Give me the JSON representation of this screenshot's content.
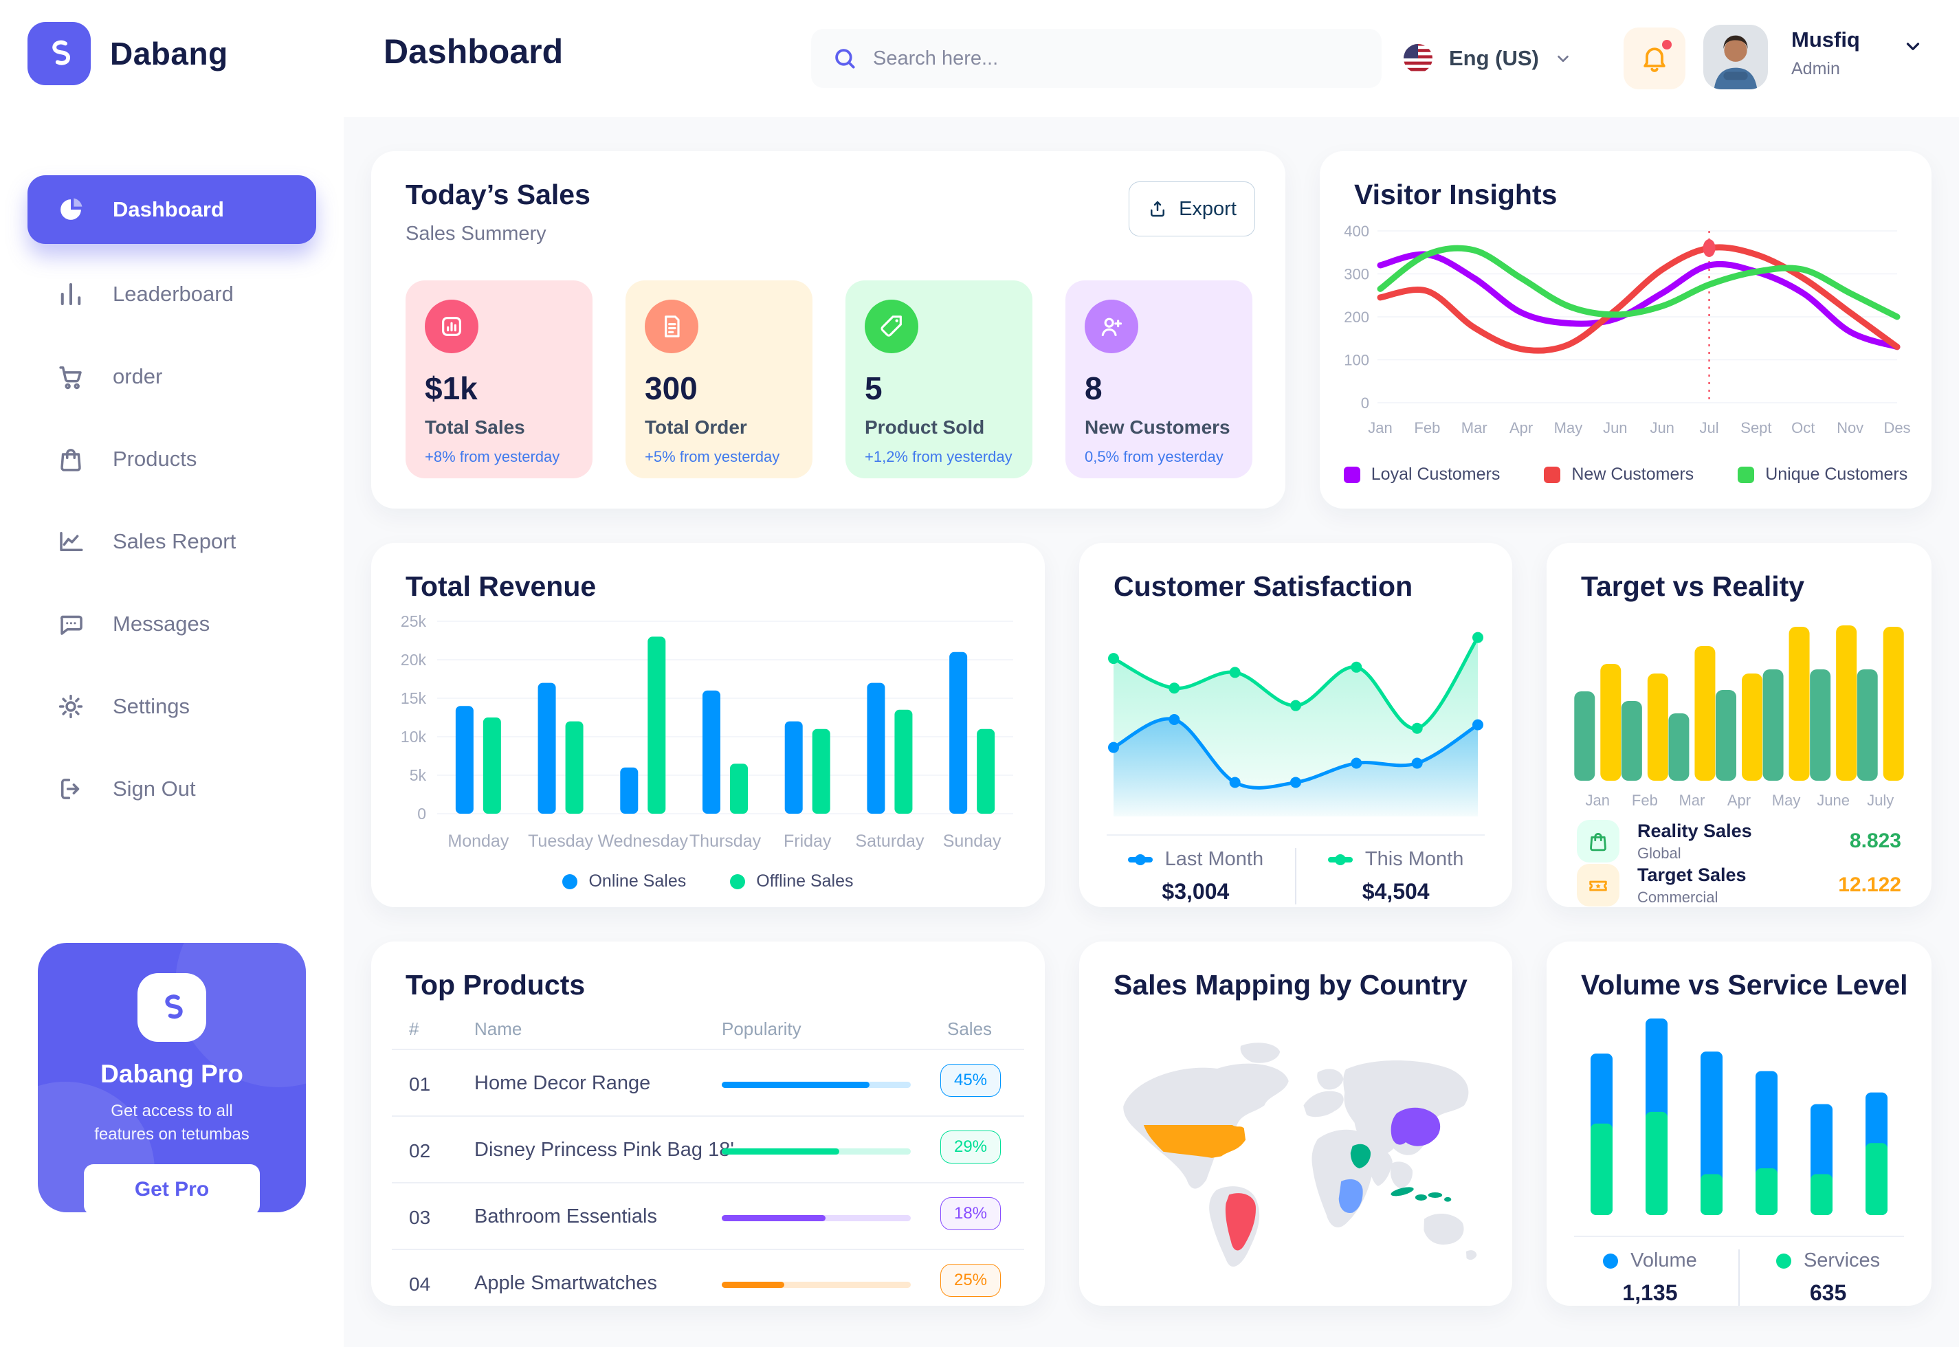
{
  "app": {
    "brand": "Dabang",
    "accent_color": "#5D5FEF"
  },
  "sidebar": {
    "items": [
      {
        "label": "Dashboard",
        "active": true
      },
      {
        "label": "Leaderboard",
        "active": false
      },
      {
        "label": "order",
        "active": false
      },
      {
        "label": "Products",
        "active": false
      },
      {
        "label": "Sales Report",
        "active": false
      },
      {
        "label": "Messages",
        "active": false
      },
      {
        "label": "Settings",
        "active": false
      },
      {
        "label": "Sign Out",
        "active": false
      }
    ],
    "pro": {
      "title": "Dabang Pro",
      "line1": "Get access to all",
      "line2": "features on tetumbas",
      "button": "Get Pro"
    }
  },
  "header": {
    "title": "Dashboard",
    "search_placeholder": "Search here...",
    "language": "Eng (US)",
    "user_name": "Musfiq",
    "user_role": "Admin"
  },
  "today": {
    "title": "Today’s Sales",
    "subtitle": "Sales Summery",
    "export_label": "Export",
    "cards": [
      {
        "value": "$1k",
        "label": "Total Sales",
        "note": "+8% from yesterday",
        "bg": "#FFE2E5",
        "icon_bg": "#FA5A7D"
      },
      {
        "value": "300",
        "label": "Total Order",
        "note": "+5% from yesterday",
        "bg": "#FFF4DE",
        "icon_bg": "#FF947A"
      },
      {
        "value": "5",
        "label": "Product Sold",
        "note": "+1,2% from yesterday",
        "bg": "#DCFCE7",
        "icon_bg": "#3CD856"
      },
      {
        "value": "8",
        "label": "New Customers",
        "note": "0,5% from yesterday",
        "bg": "#F3E8FF",
        "icon_bg": "#BF83FF"
      }
    ]
  },
  "charts": {
    "visitor_insights": {
      "type": "line",
      "title": "Visitor Insights",
      "categories": [
        "Jan",
        "Feb",
        "Mar",
        "Apr",
        "May",
        "Jun",
        "Jun",
        "Jul",
        "Sept",
        "Oct",
        "Nov",
        "Des"
      ],
      "yticks": [
        0,
        100,
        200,
        300,
        400
      ],
      "ylim": [
        0,
        400
      ],
      "series": [
        {
          "name": "Loyal Customers",
          "color": "#A700FF",
          "values": [
            320,
            345,
            290,
            210,
            185,
            195,
            255,
            320,
            305,
            255,
            165,
            130
          ]
        },
        {
          "name": "New Customers",
          "color": "#EF4444",
          "values": [
            245,
            260,
            175,
            125,
            135,
            215,
            310,
            360,
            345,
            290,
            210,
            130
          ]
        },
        {
          "name": "Unique Customers",
          "color": "#3CD856",
          "values": [
            265,
            345,
            355,
            290,
            225,
            205,
            225,
            275,
            305,
            310,
            255,
            200
          ]
        }
      ],
      "marker": {
        "series_index": 1,
        "index": 7,
        "value": 360,
        "color": "#F64E60"
      }
    },
    "total_revenue": {
      "type": "bar",
      "title": "Total Revenue",
      "categories": [
        "Monday",
        "Tuesday",
        "Wednesday",
        "Thursday",
        "Friday",
        "Saturday",
        "Sunday"
      ],
      "ytick_labels": [
        "0",
        "5k",
        "10k",
        "15k",
        "20k",
        "25k"
      ],
      "ymax": 25,
      "series": [
        {
          "name": "Online Sales",
          "color": "#0095FF",
          "values": [
            14,
            17,
            6,
            16,
            12,
            17,
            21
          ]
        },
        {
          "name": "Offline Sales",
          "color": "#00E096",
          "values": [
            12.5,
            12,
            23,
            6.5,
            11,
            13.5,
            11
          ]
        }
      ]
    },
    "customer_satisfaction": {
      "type": "area",
      "title": "Customer Satisfaction",
      "series": [
        {
          "name": "Last Month",
          "color": "#0095FF",
          "total": "$3,004",
          "values": [
            34,
            50,
            14,
            14,
            25,
            25,
            47
          ]
        },
        {
          "name": "This Month",
          "color": "#00E096",
          "total": "$4,504",
          "values": [
            85,
            68,
            77,
            58,
            80,
            45,
            97
          ]
        }
      ]
    },
    "target_vs_reality": {
      "type": "bar-pair",
      "title": "Target vs Reality",
      "categories": [
        "Jan",
        "Feb",
        "Mar",
        "Apr",
        "May",
        "June",
        "July"
      ],
      "ymax": 12,
      "series": [
        {
          "name": "Reality Sales",
          "color": "#4AB58E",
          "values": [
            6.5,
            5.8,
            4.9,
            6.6,
            8.1,
            8.1,
            8.1
          ]
        },
        {
          "name": "Target Sales",
          "color": "#FFCF00",
          "values": [
            8.5,
            7.8,
            9.8,
            7.8,
            11.2,
            11.3,
            11.2
          ]
        }
      ],
      "legend": [
        {
          "title": "Reality Sales",
          "subtitle": "Global",
          "value": "8.823",
          "value_color": "#27AE60",
          "icon_bg": "#E2FFF3"
        },
        {
          "title": "Target Sales",
          "subtitle": "Commercial",
          "value": "12.122",
          "value_color": "#FFA412",
          "icon_bg": "#FFF4DE"
        }
      ]
    },
    "volume_service": {
      "type": "stacked-bar",
      "title": "Volume vs Service Level",
      "series": [
        {
          "name": "Volume",
          "color": "#0095FF",
          "total": "1,135",
          "values": [
            36,
            48,
            63,
            50,
            36,
            26
          ]
        },
        {
          "name": "Services",
          "color": "#00E096",
          "total": "635",
          "values": [
            47,
            53,
            21,
            24,
            21,
            37
          ]
        }
      ]
    }
  },
  "top_products": {
    "title": "Top Products",
    "headers": {
      "num": "#",
      "name": "Name",
      "popularity": "Popularity",
      "sales": "Sales"
    },
    "rows": [
      {
        "num": "01",
        "name": "Home Decor Range",
        "popularity": 78,
        "sales": "45%",
        "color": "#0095FF"
      },
      {
        "num": "02",
        "name": "Disney Princess Pink Bag 18'",
        "popularity": 62,
        "sales": "29%",
        "color": "#00E096"
      },
      {
        "num": "03",
        "name": "Bathroom Essentials",
        "popularity": 55,
        "sales": "18%",
        "color": "#884DFF"
      },
      {
        "num": "04",
        "name": "Apple Smartwatches",
        "popularity": 33,
        "sales": "25%",
        "color": "#FF8F0D"
      }
    ]
  },
  "map": {
    "title": "Sales Mapping by Country",
    "countries": [
      {
        "name": "United States",
        "color": "#FFA412"
      },
      {
        "name": "Brazil",
        "color": "#F64E60"
      },
      {
        "name": "Saudi Arabia",
        "color": "#00B085"
      },
      {
        "name": "DR Congo",
        "color": "#6E9FFF"
      },
      {
        "name": "China",
        "color": "#8950FC"
      },
      {
        "name": "Indonesia",
        "color": "#00A982"
      }
    ]
  }
}
